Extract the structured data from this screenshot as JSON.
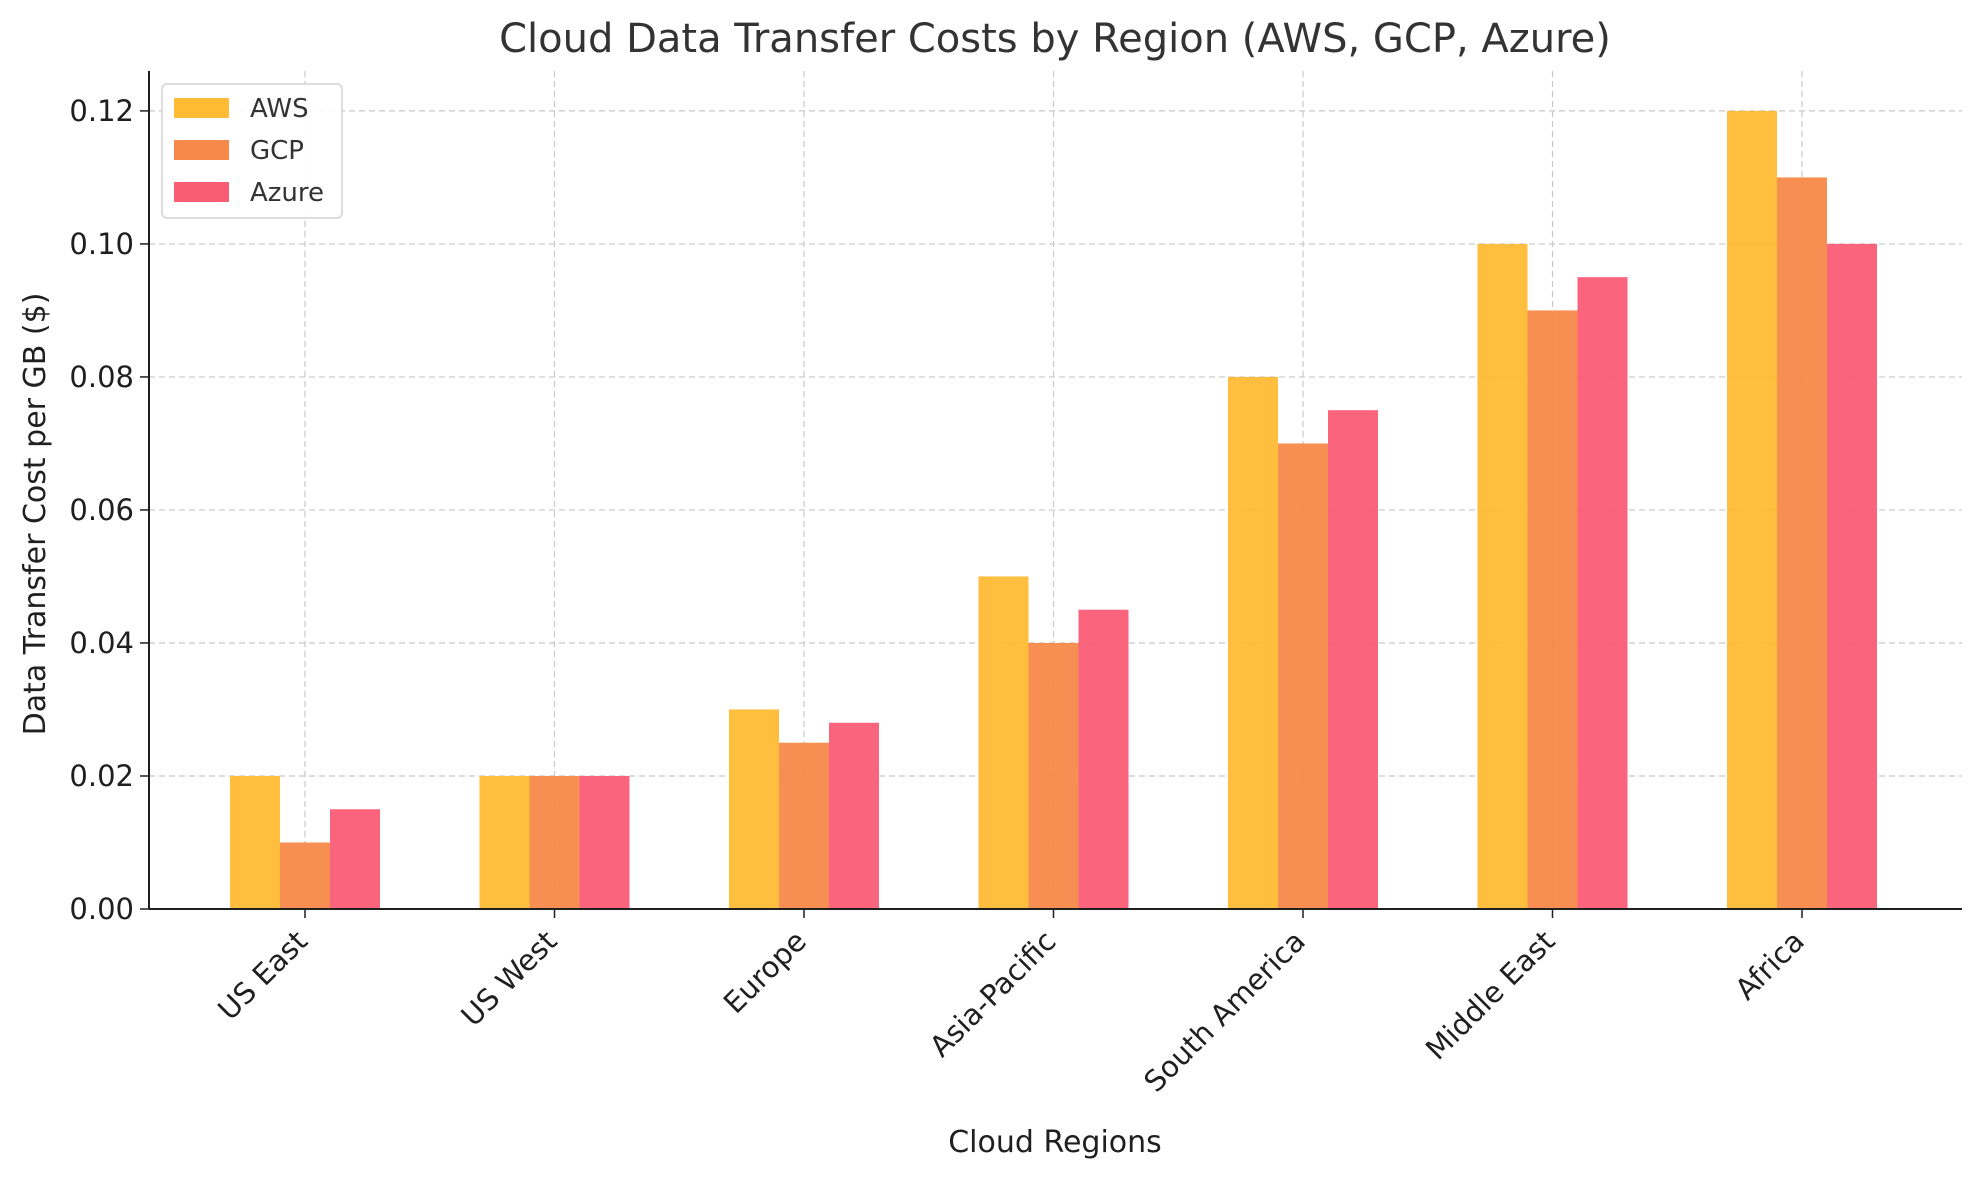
{
  "chart_data": {
    "type": "bar",
    "title": "Cloud Data Transfer Costs by Region (AWS, GCP, Azure)",
    "xlabel": "Cloud Regions",
    "ylabel": "Data Transfer Cost per GB ($)",
    "categories": [
      "US East",
      "US West",
      "Europe",
      "Asia-Pacific",
      "South America",
      "Middle East",
      "Africa"
    ],
    "series": [
      {
        "name": "AWS",
        "color": "#ffbb33",
        "values": [
          0.02,
          0.02,
          0.03,
          0.05,
          0.08,
          0.1,
          0.12
        ]
      },
      {
        "name": "GCP",
        "color": "#f7894a",
        "values": [
          0.01,
          0.02,
          0.025,
          0.04,
          0.07,
          0.09,
          0.11
        ]
      },
      {
        "name": "Azure",
        "color": "#fa5c76",
        "values": [
          0.015,
          0.02,
          0.028,
          0.045,
          0.075,
          0.095,
          0.1
        ]
      }
    ],
    "ylim": [
      0,
      0.126
    ],
    "yticks": [
      "0.00",
      "0.02",
      "0.04",
      "0.06",
      "0.08",
      "0.10",
      "0.12"
    ],
    "grid": true,
    "legend_position": "top-left"
  }
}
